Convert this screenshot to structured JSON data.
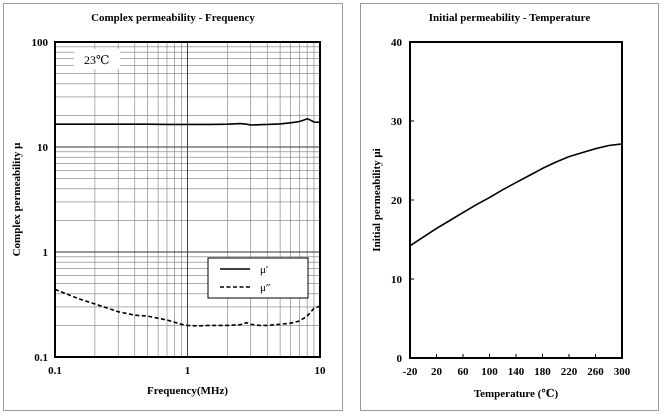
{
  "chart_data": [
    {
      "type": "line",
      "title": "Complex permeability - Frequency",
      "xlabel": "Frequency(MHz)",
      "ylabel": "Complex permeability μ",
      "x_scale": "log",
      "y_scale": "log",
      "xlim": [
        0.1,
        10
      ],
      "ylim": [
        0.1,
        100
      ],
      "x_ticks": [
        "0.1",
        "1",
        "10"
      ],
      "y_ticks": [
        "0.1",
        "1",
        "10",
        "100"
      ],
      "grid": true,
      "annotation": "23℃",
      "legend_position": "lower-right",
      "series": [
        {
          "name": "μ′",
          "style": "solid",
          "x": [
            0.1,
            0.15,
            0.2,
            0.3,
            0.5,
            0.7,
            1.0,
            1.5,
            2.0,
            2.5,
            2.8,
            3.0,
            3.5,
            4.0,
            5.0,
            6.0,
            7.0,
            7.5,
            8.0,
            8.5,
            9.0,
            10.0
          ],
          "y": [
            16.5,
            16.5,
            16.5,
            16.5,
            16.5,
            16.4,
            16.4,
            16.4,
            16.5,
            16.7,
            16.5,
            16.2,
            16.3,
            16.4,
            16.6,
            17.0,
            17.5,
            18.0,
            18.6,
            18.0,
            17.3,
            17.2
          ]
        },
        {
          "name": "μ″",
          "style": "dashed",
          "x": [
            0.1,
            0.15,
            0.2,
            0.3,
            0.4,
            0.5,
            0.7,
            0.9,
            1.0,
            1.2,
            1.5,
            2.0,
            2.5,
            2.8,
            3.0,
            3.5,
            4.0,
            5.0,
            6.0,
            7.0,
            8.0,
            9.0,
            10.0
          ],
          "y": [
            0.44,
            0.36,
            0.32,
            0.27,
            0.25,
            0.245,
            0.225,
            0.205,
            0.2,
            0.198,
            0.2,
            0.2,
            0.203,
            0.212,
            0.205,
            0.2,
            0.2,
            0.205,
            0.21,
            0.22,
            0.245,
            0.29,
            0.305
          ]
        }
      ]
    },
    {
      "type": "line",
      "title": "Initial permeability - Temperature",
      "xlabel": "Temperature (℃)",
      "ylabel": "Initial permeability μi",
      "xlim": [
        -20,
        300
      ],
      "ylim": [
        0,
        40
      ],
      "x_ticks": [
        "-20",
        "20",
        "60",
        "100",
        "140",
        "180",
        "220",
        "260",
        "300"
      ],
      "y_ticks": [
        "0",
        "10",
        "20",
        "30",
        "40"
      ],
      "grid": false,
      "series": [
        {
          "name": "",
          "style": "solid",
          "x": [
            -20,
            0,
            20,
            40,
            60,
            80,
            100,
            120,
            140,
            160,
            180,
            200,
            220,
            240,
            260,
            280,
            300
          ],
          "y": [
            14.2,
            15.3,
            16.4,
            17.4,
            18.4,
            19.4,
            20.3,
            21.3,
            22.2,
            23.1,
            24.0,
            24.8,
            25.5,
            26.0,
            26.5,
            26.9,
            27.1
          ]
        }
      ]
    }
  ]
}
